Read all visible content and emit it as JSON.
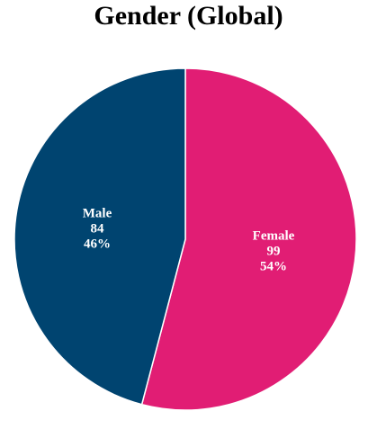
{
  "chart_data": {
    "type": "pie",
    "title": "Gender (Global)",
    "categories": [
      "Female",
      "Male"
    ],
    "values": [
      99,
      84
    ],
    "percent_labels": [
      "54%",
      "46%"
    ],
    "colors": [
      "#e11d74",
      "#004470"
    ],
    "start": "top",
    "direction": "clockwise",
    "legend": "none"
  }
}
